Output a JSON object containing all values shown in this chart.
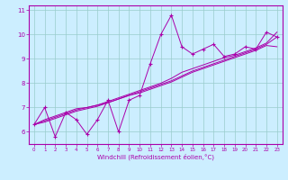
{
  "title": "",
  "xlabel": "Windchill (Refroidissement éolien,°C)",
  "ylabel": "",
  "bg_color": "#cceeff",
  "line_color": "#aa00aa",
  "grid_color": "#99cccc",
  "x_data": [
    0,
    1,
    2,
    3,
    4,
    5,
    6,
    7,
    8,
    9,
    10,
    11,
    12,
    13,
    14,
    15,
    16,
    17,
    18,
    19,
    20,
    21,
    22,
    23
  ],
  "y_data_main": [
    6.3,
    7.0,
    5.8,
    6.8,
    6.5,
    5.9,
    6.5,
    7.3,
    6.0,
    7.3,
    7.5,
    8.8,
    10.0,
    10.8,
    9.5,
    9.2,
    9.4,
    9.6,
    9.1,
    9.2,
    9.5,
    9.4,
    10.1,
    9.9
  ],
  "y_trend1": [
    6.3,
    6.45,
    6.6,
    6.75,
    6.9,
    7.0,
    7.1,
    7.2,
    7.35,
    7.5,
    7.65,
    7.8,
    7.95,
    8.1,
    8.3,
    8.5,
    8.65,
    8.8,
    8.95,
    9.1,
    9.25,
    9.4,
    9.6,
    9.9
  ],
  "y_trend2": [
    6.3,
    6.5,
    6.65,
    6.8,
    6.95,
    7.0,
    7.1,
    7.25,
    7.4,
    7.55,
    7.7,
    7.85,
    8.0,
    8.2,
    8.45,
    8.6,
    8.75,
    8.9,
    9.05,
    9.15,
    9.3,
    9.45,
    9.65,
    10.1
  ],
  "y_trend3": [
    6.3,
    6.4,
    6.55,
    6.7,
    6.85,
    6.95,
    7.05,
    7.2,
    7.35,
    7.5,
    7.6,
    7.75,
    7.9,
    8.05,
    8.25,
    8.45,
    8.6,
    8.75,
    8.9,
    9.05,
    9.2,
    9.35,
    9.55,
    9.5
  ],
  "ylim": [
    5.5,
    11.2
  ],
  "xlim": [
    -0.5,
    23.5
  ],
  "yticks": [
    6,
    7,
    8,
    9,
    10,
    11
  ],
  "xticks": [
    0,
    1,
    2,
    3,
    4,
    5,
    6,
    7,
    8,
    9,
    10,
    11,
    12,
    13,
    14,
    15,
    16,
    17,
    18,
    19,
    20,
    21,
    22,
    23
  ]
}
